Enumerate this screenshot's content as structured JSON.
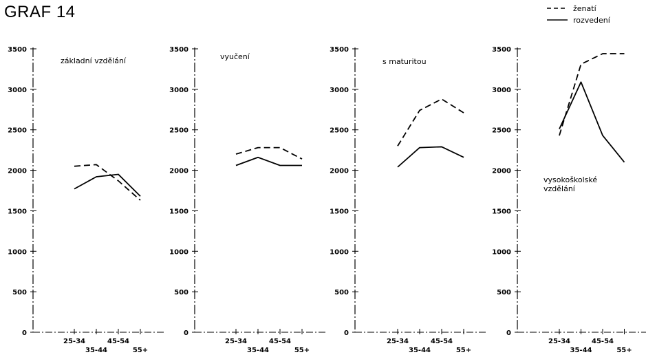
{
  "page": {
    "title": "GRAF 14"
  },
  "legend": [
    {
      "label": "ženatí",
      "style": "dashed"
    },
    {
      "label": "rozvedení",
      "style": "solid"
    }
  ],
  "chart_data": [
    {
      "type": "line",
      "title": "základní vzdělání",
      "categories": [
        "25-34",
        "35-44",
        "45-54",
        "55+"
      ],
      "ylim": [
        0,
        3500
      ],
      "yticks": [
        "0",
        "500",
        "1000",
        "1500",
        "2000",
        "2500",
        "3000",
        "3500"
      ],
      "series": [
        {
          "name": "ženatí",
          "style": "dashed",
          "values": [
            2050,
            2070,
            1870,
            1630
          ]
        },
        {
          "name": "rozvedení",
          "style": "solid",
          "values": [
            1770,
            1920,
            1950,
            1680
          ]
        }
      ]
    },
    {
      "type": "line",
      "title": "vyučení",
      "categories": [
        "25-34",
        "35-44",
        "45-54",
        "55+"
      ],
      "ylim": [
        0,
        3500
      ],
      "yticks": [
        "0",
        "500",
        "1000",
        "1500",
        "2000",
        "2500",
        "3000",
        "3500"
      ],
      "series": [
        {
          "name": "ženatí",
          "style": "dashed",
          "values": [
            2200,
            2280,
            2280,
            2140
          ]
        },
        {
          "name": "rozvedení",
          "style": "solid",
          "values": [
            2060,
            2160,
            2060,
            2060
          ]
        }
      ]
    },
    {
      "type": "line",
      "title": "s maturitou",
      "categories": [
        "25-34",
        "35-44",
        "45-54",
        "55+"
      ],
      "ylim": [
        0,
        3500
      ],
      "yticks": [
        "0",
        "500",
        "1000",
        "1500",
        "2000",
        "2500",
        "3000",
        "3500"
      ],
      "series": [
        {
          "name": "ženatí",
          "style": "dashed",
          "values": [
            2300,
            2740,
            2880,
            2710
          ]
        },
        {
          "name": "rozvedení",
          "style": "solid",
          "values": [
            2040,
            2280,
            2290,
            2160
          ]
        }
      ]
    },
    {
      "type": "line",
      "title": "vysokoškolské vzdělání",
      "categories": [
        "25-34",
        "35-44",
        "45-54",
        "55+"
      ],
      "ylim": [
        0,
        3500
      ],
      "yticks": [
        "0",
        "500",
        "1000",
        "1500",
        "2000",
        "2500",
        "3000",
        "3500"
      ],
      "series": [
        {
          "name": "ženatí",
          "style": "dashed",
          "values": [
            2430,
            3310,
            3440,
            3440
          ]
        },
        {
          "name": "rozvedení",
          "style": "solid",
          "values": [
            2510,
            3090,
            2430,
            2100
          ]
        }
      ]
    }
  ]
}
